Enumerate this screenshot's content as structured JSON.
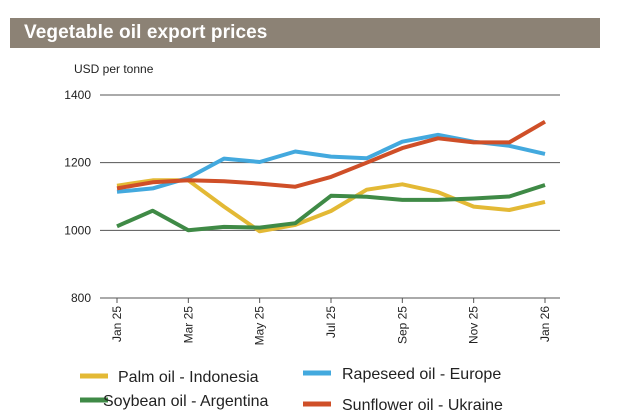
{
  "header": {
    "title": "Vegetable oil export prices"
  },
  "chart_data": {
    "type": "line",
    "ylabel": "USD per tonne",
    "ylim": [
      800,
      1400
    ],
    "yticks": [
      800,
      1000,
      1200,
      1400
    ],
    "grid": "horizontal",
    "legend_position": "bottom",
    "x": [
      "Jan 25",
      "Feb 25",
      "Mar 25",
      "Apr 25",
      "May 25",
      "Jun 25",
      "Jul 25",
      "Aug 25",
      "Sep 25",
      "Oct 25",
      "Nov 25",
      "Dec 25",
      "Jan 26"
    ],
    "x_labels_shown": [
      "Jan 25",
      "Mar 25",
      "May 25",
      "Jul 25",
      "Sep 25",
      "Nov 25",
      "Jan 26"
    ],
    "series": [
      {
        "name": "Palm oil - Indonesia",
        "color": "#e3b935",
        "values": [
          1132,
          1148,
          1148,
          1070,
          997,
          1016,
          1057,
          1120,
          1136,
          1113,
          1070,
          1060,
          1084
        ]
      },
      {
        "name": "Rapeseed oil - Europe",
        "color": "#43a9de",
        "values": [
          1114,
          1124,
          1155,
          1212,
          1202,
          1233,
          1218,
          1213,
          1262,
          1282,
          1262,
          1250,
          1226
        ]
      },
      {
        "name": "Soybean oil - Argentina",
        "color": "#3f8a46",
        "values": [
          1012,
          1058,
          1000,
          1010,
          1008,
          1021,
          1102,
          1099,
          1090,
          1090,
          1094,
          1100,
          1134
        ]
      },
      {
        "name": "Sunflower oil - Ukraine",
        "color": "#cf4f28",
        "values": [
          1124,
          1142,
          1148,
          1145,
          1138,
          1129,
          1158,
          1200,
          1243,
          1272,
          1260,
          1260,
          1321
        ]
      }
    ]
  }
}
